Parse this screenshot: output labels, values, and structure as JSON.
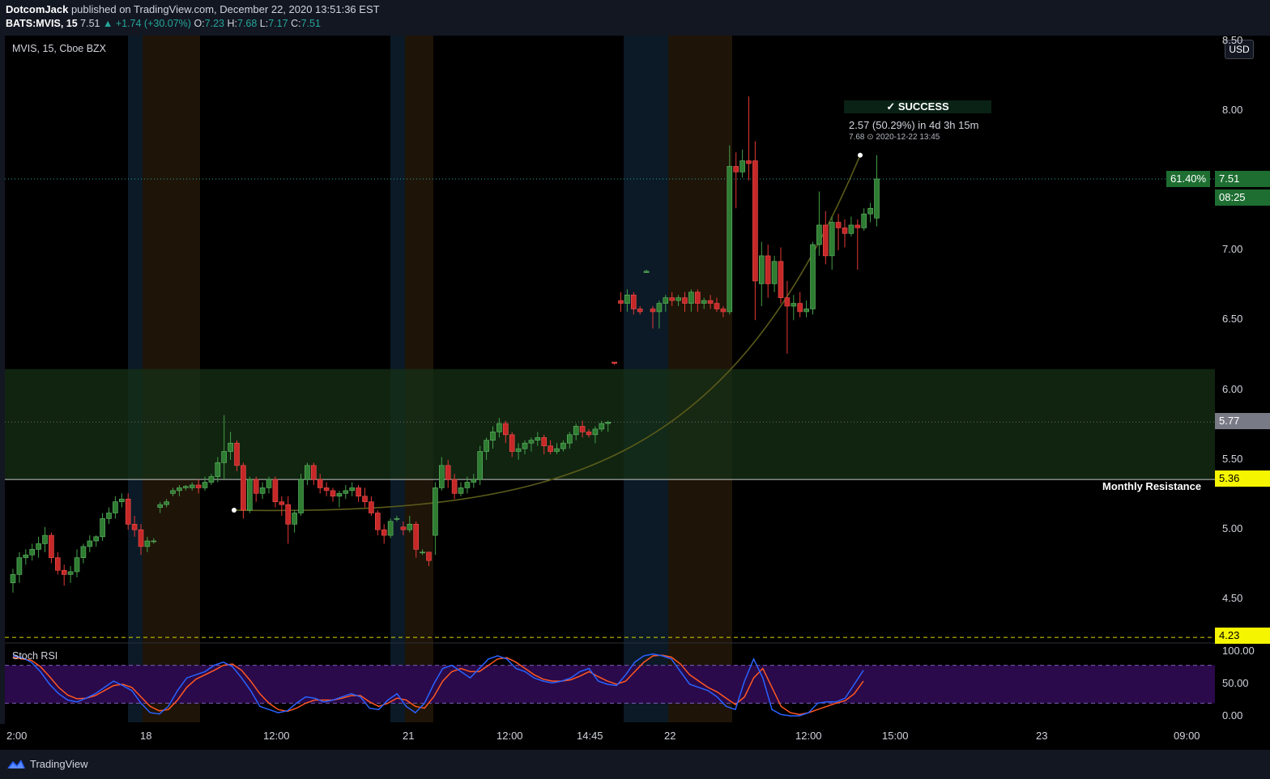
{
  "header": {
    "author": "DotcomJack",
    "published_text": "published on TradingView.com, December 22, 2020 13:51:36 EST",
    "symbol": "BATS:MVIS, 15",
    "last": "7.51",
    "change": "▲ +1.74 (+30.07%)",
    "o_label": "O:",
    "o_value": "7.23",
    "h_label": "H:",
    "h_value": "7.68",
    "l_label": "L:",
    "l_value": "7.17",
    "c_label": "C:",
    "c_value": "7.51"
  },
  "legend": "MVIS, 15, Cboe BZX",
  "currency": "USD",
  "price_axis": [
    "8.50",
    "8.00",
    "7.50",
    "7.00",
    "6.50",
    "6.00",
    "5.50",
    "5.00",
    "4.50"
  ],
  "tags": {
    "price": "7.51",
    "countdown": "08:25",
    "pct": "61.40%",
    "level_577": "5.77",
    "level_536": "5.36",
    "level_423": "4.23"
  },
  "monthly_resistance": "Monthly Resistance",
  "success": {
    "title": "✓ SUCCESS",
    "line1": "2.57 (50.29%) in 4d 3h 15m",
    "line2": "7.68 ⊙ 2020-12-22  13:45"
  },
  "rsi": {
    "title": "Stoch RSI",
    "axis": [
      "100.00",
      "50.00",
      "0.00"
    ]
  },
  "time_axis": [
    "2:00",
    "18",
    "12:00",
    "21",
    "12:00",
    "14:45",
    "22",
    "12:00",
    "15:00",
    "23",
    "09:00"
  ],
  "footer": {
    "brand": "TradingView"
  },
  "colors": {
    "up": "#26a69a",
    "down": "#ef5350",
    "candle_up": "#2e7d32",
    "candle_down": "#c62828",
    "zone": "#163016",
    "rsi_band": "#2a0a4a",
    "k_line": "#2962ff",
    "d_line": "#ff5722",
    "curve": "#5a5a1a"
  },
  "chart_data": {
    "type": "candlestick",
    "interval": "15",
    "ylim": [
      4.15,
      8.55
    ],
    "levels": [
      5.77,
      5.36,
      4.23
    ],
    "zone": [
      5.36,
      6.15
    ],
    "last_price": 7.51,
    "candles": [
      [
        4.62,
        4.72,
        4.55,
        4.68
      ],
      [
        4.68,
        4.84,
        4.62,
        4.8
      ],
      [
        4.8,
        4.86,
        4.75,
        4.82
      ],
      [
        4.82,
        4.9,
        4.78,
        4.86
      ],
      [
        4.86,
        4.95,
        4.8,
        4.9
      ],
      [
        4.9,
        5.02,
        4.84,
        4.96
      ],
      [
        4.96,
        4.98,
        4.76,
        4.8
      ],
      [
        4.8,
        4.84,
        4.68,
        4.71
      ],
      [
        4.71,
        4.75,
        4.6,
        4.68
      ],
      [
        4.68,
        4.74,
        4.62,
        4.7
      ],
      [
        4.7,
        4.86,
        4.66,
        4.8
      ],
      [
        4.8,
        4.9,
        4.76,
        4.88
      ],
      [
        4.88,
        4.96,
        4.84,
        4.92
      ],
      [
        4.92,
        4.96,
        4.88,
        4.95
      ],
      [
        4.95,
        5.12,
        4.92,
        5.08
      ],
      [
        5.08,
        5.16,
        5.04,
        5.12
      ],
      [
        5.12,
        5.24,
        5.08,
        5.2
      ],
      [
        5.2,
        5.26,
        5.16,
        5.22
      ],
      [
        5.22,
        5.26,
        5.0,
        5.04
      ],
      [
        5.04,
        5.1,
        4.95,
        5.0
      ],
      [
        5.0,
        5.04,
        4.82,
        4.88
      ],
      [
        4.88,
        4.95,
        4.84,
        4.92
      ],
      [
        4.92,
        4.94,
        4.9,
        4.92
      ],
      [
        5.16,
        5.2,
        5.12,
        5.18
      ],
      [
        5.18,
        5.22,
        5.16,
        5.2
      ],
      [
        5.26,
        5.3,
        5.24,
        5.28
      ],
      [
        5.28,
        5.32,
        5.24,
        5.3
      ],
      [
        5.3,
        5.32,
        5.28,
        5.31
      ],
      [
        5.3,
        5.34,
        5.28,
        5.32
      ],
      [
        5.32,
        5.36,
        5.26,
        5.3
      ],
      [
        5.3,
        5.38,
        5.28,
        5.34
      ],
      [
        5.34,
        5.4,
        5.32,
        5.38
      ],
      [
        5.38,
        5.52,
        5.34,
        5.48
      ],
      [
        5.48,
        5.82,
        5.36,
        5.56
      ],
      [
        5.56,
        5.7,
        5.5,
        5.62
      ],
      [
        5.62,
        5.64,
        5.42,
        5.46
      ],
      [
        5.46,
        5.48,
        5.08,
        5.14
      ],
      [
        5.14,
        5.38,
        5.12,
        5.36
      ],
      [
        5.36,
        5.38,
        5.2,
        5.26
      ],
      [
        5.26,
        5.34,
        5.22,
        5.3
      ],
      [
        5.3,
        5.38,
        5.26,
        5.36
      ],
      [
        5.36,
        5.38,
        5.16,
        5.2
      ],
      [
        5.2,
        5.24,
        5.1,
        5.18
      ],
      [
        5.18,
        5.24,
        4.9,
        5.04
      ],
      [
        5.04,
        5.14,
        4.98,
        5.12
      ],
      [
        5.12,
        5.4,
        5.1,
        5.36
      ],
      [
        5.36,
        5.48,
        5.32,
        5.46
      ],
      [
        5.46,
        5.48,
        5.32,
        5.36
      ],
      [
        5.36,
        5.4,
        5.26,
        5.3
      ],
      [
        5.3,
        5.34,
        5.24,
        5.28
      ],
      [
        5.28,
        5.3,
        5.2,
        5.24
      ],
      [
        5.24,
        5.28,
        5.16,
        5.26
      ],
      [
        5.26,
        5.32,
        5.22,
        5.28
      ],
      [
        5.28,
        5.34,
        5.24,
        5.3
      ],
      [
        5.3,
        5.32,
        5.2,
        5.24
      ],
      [
        5.24,
        5.3,
        5.16,
        5.2
      ],
      [
        5.2,
        5.24,
        5.1,
        5.12
      ],
      [
        5.12,
        5.14,
        4.96,
        5.0
      ],
      [
        5.0,
        5.04,
        4.9,
        4.96
      ],
      [
        4.96,
        5.08,
        4.94,
        5.06
      ],
      [
        5.08,
        5.1,
        5.06,
        5.08
      ],
      [
        5.02,
        5.06,
        4.96,
        5.0
      ],
      [
        5.0,
        5.1,
        4.98,
        5.04
      ],
      [
        5.04,
        5.06,
        4.8,
        4.86
      ],
      [
        4.84,
        4.86,
        4.82,
        4.84
      ],
      [
        4.84,
        4.84,
        4.74,
        4.78
      ],
      [
        4.96,
        5.34,
        4.82,
        5.3
      ],
      [
        5.3,
        5.52,
        5.28,
        5.46
      ],
      [
        5.46,
        5.5,
        5.3,
        5.36
      ],
      [
        5.36,
        5.4,
        5.22,
        5.26
      ],
      [
        5.26,
        5.34,
        5.24,
        5.3
      ],
      [
        5.3,
        5.38,
        5.26,
        5.34
      ],
      [
        5.34,
        5.4,
        5.3,
        5.36
      ],
      [
        5.36,
        5.6,
        5.32,
        5.56
      ],
      [
        5.56,
        5.66,
        5.5,
        5.64
      ],
      [
        5.64,
        5.74,
        5.58,
        5.7
      ],
      [
        5.7,
        5.8,
        5.66,
        5.76
      ],
      [
        5.76,
        5.78,
        5.62,
        5.68
      ],
      [
        5.68,
        5.7,
        5.52,
        5.56
      ],
      [
        5.56,
        5.62,
        5.5,
        5.58
      ],
      [
        5.58,
        5.64,
        5.54,
        5.62
      ],
      [
        5.62,
        5.66,
        5.56,
        5.64
      ],
      [
        5.64,
        5.7,
        5.6,
        5.66
      ],
      [
        5.66,
        5.68,
        5.54,
        5.6
      ],
      [
        5.6,
        5.64,
        5.54,
        5.56
      ],
      [
        5.56,
        5.62,
        5.54,
        5.58
      ],
      [
        5.58,
        5.64,
        5.56,
        5.62
      ],
      [
        5.62,
        5.7,
        5.58,
        5.68
      ],
      [
        5.68,
        5.76,
        5.64,
        5.74
      ],
      [
        5.74,
        5.78,
        5.66,
        5.7
      ],
      [
        5.7,
        5.72,
        5.66,
        5.68
      ],
      [
        5.68,
        5.74,
        5.62,
        5.72
      ],
      [
        5.72,
        5.78,
        5.7,
        5.76
      ],
      [
        5.76,
        5.78,
        5.7,
        5.77
      ],
      [
        6.2,
        6.2,
        6.18,
        6.19
      ],
      [
        6.64,
        6.7,
        6.56,
        6.62
      ],
      [
        6.62,
        6.72,
        6.56,
        6.68
      ],
      [
        6.68,
        6.7,
        6.54,
        6.58
      ],
      [
        6.58,
        6.6,
        6.54,
        6.56
      ],
      [
        6.84,
        6.86,
        6.84,
        6.85
      ],
      [
        6.58,
        6.6,
        6.44,
        6.56
      ],
      [
        6.56,
        6.64,
        6.44,
        6.62
      ],
      [
        6.62,
        6.68,
        6.56,
        6.66
      ],
      [
        6.66,
        6.7,
        6.6,
        6.64
      ],
      [
        6.64,
        6.68,
        6.6,
        6.66
      ],
      [
        6.66,
        6.7,
        6.56,
        6.62
      ],
      [
        6.62,
        6.72,
        6.56,
        6.7
      ],
      [
        6.7,
        6.72,
        6.56,
        6.62
      ],
      [
        6.62,
        6.66,
        6.58,
        6.64
      ],
      [
        6.64,
        6.68,
        6.58,
        6.62
      ],
      [
        6.62,
        6.66,
        6.56,
        6.58
      ],
      [
        6.58,
        6.6,
        6.52,
        6.56
      ],
      [
        6.56,
        7.75,
        6.54,
        7.6
      ],
      [
        7.6,
        7.7,
        7.3,
        7.56
      ],
      [
        7.56,
        7.72,
        7.52,
        7.64
      ],
      [
        7.64,
        8.1,
        7.5,
        7.62
      ],
      [
        7.64,
        7.78,
        6.5,
        6.78
      ],
      [
        6.76,
        7.06,
        6.6,
        6.96
      ],
      [
        6.96,
        7.04,
        6.66,
        6.76
      ],
      [
        6.76,
        6.96,
        6.7,
        6.92
      ],
      [
        6.92,
        7.02,
        6.62,
        6.66
      ],
      [
        6.66,
        6.78,
        6.26,
        6.6
      ],
      [
        6.6,
        6.68,
        6.5,
        6.62
      ],
      [
        6.62,
        6.7,
        6.52,
        6.56
      ],
      [
        6.56,
        6.64,
        6.52,
        6.58
      ],
      [
        6.58,
        7.06,
        6.54,
        7.04
      ],
      [
        7.04,
        7.42,
        6.96,
        7.18
      ],
      [
        7.18,
        7.28,
        6.9,
        6.96
      ],
      [
        6.96,
        7.24,
        6.86,
        7.2
      ],
      [
        7.2,
        7.26,
        7.0,
        7.16
      ],
      [
        7.16,
        7.22,
        7.02,
        7.12
      ],
      [
        7.12,
        7.24,
        7.1,
        7.18
      ],
      [
        7.18,
        7.22,
        6.86,
        7.16
      ],
      [
        7.16,
        7.3,
        7.14,
        7.26
      ],
      [
        7.26,
        7.34,
        7.2,
        7.3
      ],
      [
        7.23,
        7.68,
        7.17,
        7.51
      ]
    ],
    "stoch_k": [
      95,
      92,
      85,
      70,
      50,
      35,
      25,
      22,
      28,
      35,
      45,
      55,
      48,
      40,
      20,
      5,
      3,
      15,
      40,
      60,
      65,
      70,
      80,
      85,
      78,
      60,
      40,
      15,
      10,
      5,
      8,
      20,
      30,
      28,
      22,
      25,
      30,
      35,
      30,
      12,
      10,
      25,
      35,
      15,
      5,
      20,
      50,
      75,
      80,
      70,
      60,
      75,
      90,
      95,
      90,
      75,
      70,
      60,
      55,
      52,
      55,
      60,
      70,
      75,
      55,
      50,
      48,
      65,
      85,
      95,
      98,
      95,
      90,
      70,
      50,
      45,
      40,
      30,
      15,
      10,
      55,
      90,
      60,
      10,
      2,
      0,
      0,
      5,
      20,
      22,
      22,
      28,
      50,
      72
    ],
    "stoch_d": [
      93,
      90,
      88,
      78,
      62,
      45,
      33,
      27,
      28,
      32,
      40,
      48,
      50,
      45,
      30,
      15,
      8,
      10,
      25,
      45,
      58,
      65,
      72,
      80,
      82,
      72,
      55,
      35,
      20,
      10,
      7,
      12,
      20,
      25,
      25,
      25,
      28,
      32,
      32,
      22,
      15,
      20,
      28,
      25,
      15,
      12,
      30,
      55,
      70,
      75,
      70,
      70,
      80,
      90,
      92,
      85,
      75,
      65,
      58,
      55,
      55,
      57,
      63,
      70,
      62,
      55,
      50,
      55,
      70,
      85,
      95,
      96,
      93,
      82,
      65,
      55,
      45,
      38,
      28,
      18,
      30,
      60,
      75,
      45,
      15,
      5,
      2,
      5,
      10,
      15,
      20,
      24,
      35,
      55
    ]
  }
}
